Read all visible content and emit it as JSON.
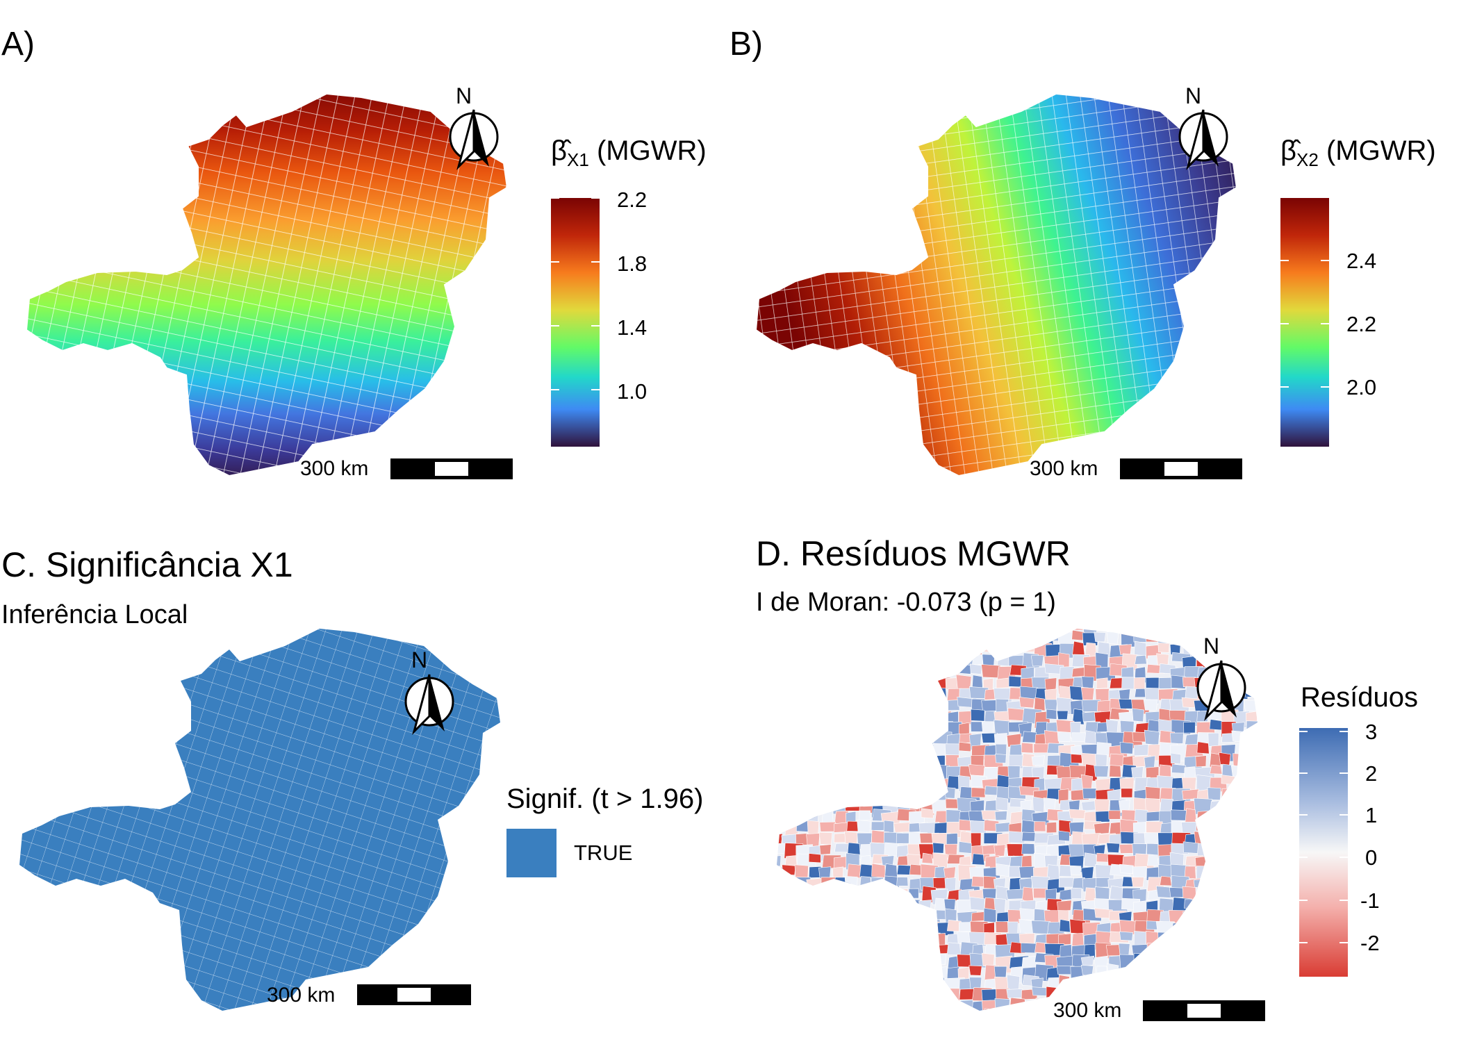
{
  "panels": {
    "A": {
      "tag": "A)",
      "legend_symbol": "β̂",
      "legend_sub": "X1",
      "legend_suffix": "(MGWR)",
      "ticks": [
        "2.2",
        "1.8",
        "1.4",
        "1.0"
      ],
      "scale_label": "300 km",
      "north": "N"
    },
    "B": {
      "tag": "B)",
      "legend_symbol": "β̂",
      "legend_sub": "X2",
      "legend_suffix": "(MGWR)",
      "ticks": [
        "2.4",
        "2.2",
        "2.0"
      ],
      "scale_label": "300 km",
      "north": "N"
    },
    "C": {
      "title": "C. Significância X1",
      "subtitle": "Inferência Local",
      "legend_title": "Signif. (t > 1.96)",
      "legend_item": "TRUE",
      "fill_color": "#3a7fbf",
      "scale_label": "300 km",
      "north": "N"
    },
    "D": {
      "title": "D. Resíduos MGWR",
      "subtitle": "I de Moran: -0.073 (p = 1)",
      "legend_title": "Resíduos",
      "ticks": [
        "3",
        "2",
        "1",
        "0",
        "-1",
        "-2"
      ],
      "scale_label": "300 km",
      "north": "N"
    }
  },
  "colors": {
    "turbo": [
      "#30123b",
      "#4662d7",
      "#36aaf9",
      "#1ae4b6",
      "#72fe5e",
      "#c8ef34",
      "#faba39",
      "#f66b19",
      "#ca2a04",
      "#7a0403"
    ],
    "diverging": [
      "#3d6cb3",
      "#a9bde0",
      "#f7f7f7",
      "#f4b0ac",
      "#d93c33"
    ],
    "significant": "#3a7fbf"
  }
}
